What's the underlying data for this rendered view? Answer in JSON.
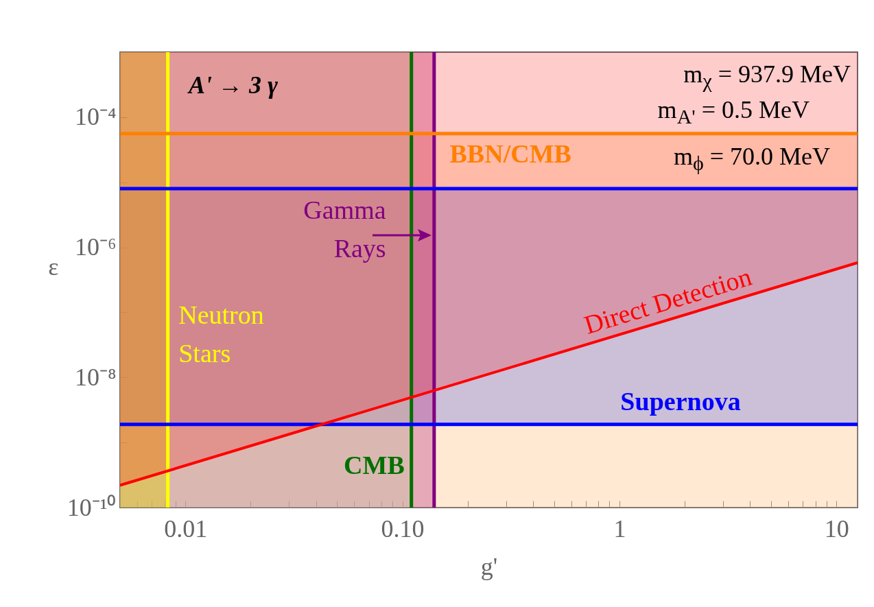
{
  "chart_data": {
    "type": "line",
    "xlabel": "g'",
    "ylabel": "ε",
    "log": "xy",
    "grid": false,
    "xlim": [
      0.005,
      12.5
    ],
    "ylim": [
      1e-10,
      0.001
    ],
    "xticks": [
      {
        "value": 0.006,
        "label": null
      },
      {
        "value": 0.007,
        "label": null
      },
      {
        "value": 0.008,
        "label": null
      },
      {
        "value": 0.009,
        "label": null
      },
      0.01,
      {
        "value": 0.02,
        "label": null
      },
      {
        "value": 0.03,
        "label": null
      },
      {
        "value": 0.04,
        "label": null
      },
      {
        "value": 0.05,
        "label": null
      },
      {
        "value": 0.06,
        "label": null
      },
      {
        "value": 0.07,
        "label": null
      },
      {
        "value": 0.08,
        "label": null
      },
      {
        "value": 0.09,
        "label": null
      },
      {
        "value": 0.1,
        "label": "0.10"
      },
      {
        "value": 0.2,
        "label": null
      },
      {
        "value": 0.3,
        "label": null
      },
      {
        "value": 0.4,
        "label": null
      },
      {
        "value": 0.5,
        "label": null
      },
      {
        "value": 0.6,
        "label": null
      },
      {
        "value": 0.7,
        "label": null
      },
      {
        "value": 0.8,
        "label": null
      },
      {
        "value": 0.9,
        "label": null
      },
      1,
      {
        "value": 2,
        "label": null
      },
      {
        "value": 3,
        "label": null
      },
      {
        "value": 4,
        "label": null
      },
      {
        "value": 5,
        "label": null
      },
      {
        "value": 6,
        "label": null
      },
      {
        "value": 7,
        "label": null
      },
      {
        "value": 8,
        "label": null
      },
      {
        "value": 9,
        "label": null
      },
      10
    ],
    "yticks": [
      {
        "value": 1e-10,
        "label": "10⁻¹⁰"
      },
      {
        "value": 1e-09,
        "label": null
      },
      {
        "value": 1e-08,
        "label": "10⁻⁸"
      },
      {
        "value": 1e-07,
        "label": null
      },
      {
        "value": 1e-06,
        "label": "10⁻⁶"
      },
      {
        "value": 1e-05,
        "label": null
      },
      {
        "value": 0.0001,
        "label": "10⁻⁴"
      }
    ],
    "series": [
      {
        "name": "Direct Detection",
        "color": "#ff0000",
        "x": [
          0.005,
          12.5
        ],
        "values": [
          2.2e-10,
          5.8e-07
        ],
        "lower": [
          2.2e-10,
          5.8e-07
        ],
        "upper": [
          0.001,
          0.001
        ]
      }
    ],
    "bands": [
      {
        "axis": "y",
        "from": 1e-10,
        "to": 5.6e-05,
        "color": "#ffc890"
      },
      {
        "axis": "y",
        "from": 1.9e-09,
        "to": 8e-06,
        "color": "#8080e0"
      },
      {
        "axis": "x",
        "from": 0.005,
        "to": 0.14,
        "color": "#c04890"
      },
      {
        "axis": "x",
        "from": 0.005,
        "to": 0.11,
        "color": "#c8d0a8"
      },
      {
        "axis": "x",
        "from": 0.005,
        "to": 0.0083,
        "color": "#e0d000"
      }
    ],
    "ref_lines": [
      {
        "axis": "x",
        "value": 0.0083,
        "label": "Neutron Stars",
        "color": "#ffff00"
      },
      {
        "axis": "x",
        "value": 0.11,
        "label": "CMB",
        "color": "#007000"
      },
      {
        "axis": "x",
        "value": 0.14,
        "label": "Gamma Rays",
        "color": "#800080"
      },
      {
        "axis": "y",
        "value": 5.6e-05,
        "label": "BBN/CMB",
        "color": "#ff8000"
      },
      {
        "axis": "y",
        "value": 8e-06,
        "label": null,
        "color": "#0000ff"
      },
      {
        "axis": "y",
        "value": 1.9e-09,
        "label": "Supernova",
        "color": "#0000ff"
      }
    ],
    "annotations": [
      "A' → 3 γ",
      "m$_{χ}$ = 937.9 MeV",
      "m$_{A'}$ = 0.5 MeV",
      "m$_{ϕ}$ = 70.0 MeV"
    ]
  }
}
